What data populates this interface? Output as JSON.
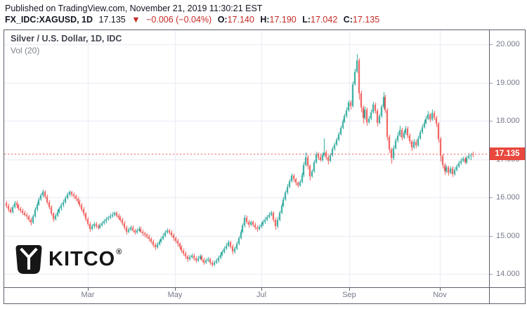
{
  "header": {
    "published_line": "Published on TradingView.com, November 21, 2019 11:30:21 EST",
    "symbol_line": {
      "symbol": "FX_IDC:XAGUSD, 1D",
      "last": "17.135",
      "direction_icon": "▼",
      "change": "−0.006 (−0.04%)",
      "o_label": "O:",
      "o_value": "17.140",
      "h_label": "H:",
      "h_value": "17.190",
      "l_label": "L:",
      "l_value": "17.042",
      "c_label": "C:",
      "c_value": "17.135"
    }
  },
  "chart": {
    "title": "Silver / U.S. Dollar, 1D, IDC",
    "indicator_label": "Vol (20)",
    "watermark": {
      "text": "KITCO",
      "registered_mark": "®"
    },
    "last_price_label": "17.135",
    "colors": {
      "up": "#26a69a",
      "down": "#ef5350",
      "grid": "#e7eaf3",
      "border": "#5d616b",
      "axis_text": "#75798a",
      "last_price": "#e8483e",
      "title": "#434651",
      "header_red": "#c42b26"
    }
  },
  "chart_data": {
    "type": "candlestick",
    "title": "Silver / U.S. Dollar, 1D, IDC",
    "symbol": "FX_IDC:XAGUSD",
    "interval": "1D",
    "last_price": 17.135,
    "ylim": [
      13.65,
      20.37
    ],
    "y_ticks": [
      {
        "value": 20,
        "label": "20.000"
      },
      {
        "value": 19,
        "label": "19.000"
      },
      {
        "value": 18,
        "label": "18.000"
      },
      {
        "value": 17,
        "label": "17.000"
      },
      {
        "value": 16,
        "label": "16.000"
      },
      {
        "value": 15,
        "label": "15.000"
      },
      {
        "value": 14,
        "label": "14.000"
      }
    ],
    "x_tick_months": [
      {
        "label": "Mar",
        "index": 40
      },
      {
        "label": "May",
        "index": 82.8
      },
      {
        "label": "Jul",
        "index": 125.2
      },
      {
        "label": "Sep",
        "index": 168.3
      },
      {
        "label": "Nov",
        "index": 212.8
      }
    ],
    "candles": [
      [
        15.85,
        15.9,
        15.72,
        15.78
      ],
      [
        15.78,
        15.83,
        15.62,
        15.68
      ],
      [
        15.68,
        15.74,
        15.57,
        15.62
      ],
      [
        15.62,
        15.79,
        15.58,
        15.74
      ],
      [
        15.74,
        15.91,
        15.7,
        15.85
      ],
      [
        15.85,
        15.9,
        15.73,
        15.79
      ],
      [
        15.79,
        15.84,
        15.66,
        15.71
      ],
      [
        15.71,
        15.77,
        15.6,
        15.66
      ],
      [
        15.66,
        15.71,
        15.54,
        15.6
      ],
      [
        15.6,
        15.66,
        15.5,
        15.55
      ],
      [
        15.55,
        15.6,
        15.44,
        15.5
      ],
      [
        15.5,
        15.55,
        15.36,
        15.42
      ],
      [
        15.42,
        15.47,
        15.27,
        15.34
      ],
      [
        15.34,
        15.56,
        15.3,
        15.5
      ],
      [
        15.5,
        15.74,
        15.46,
        15.68
      ],
      [
        15.68,
        15.88,
        15.64,
        15.82
      ],
      [
        15.82,
        16.0,
        15.78,
        15.94
      ],
      [
        15.94,
        16.11,
        15.9,
        16.05
      ],
      [
        16.05,
        16.2,
        16.0,
        16.14
      ],
      [
        16.14,
        16.18,
        15.96,
        16.02
      ],
      [
        16.02,
        16.07,
        15.82,
        15.88
      ],
      [
        15.88,
        15.93,
        15.68,
        15.74
      ],
      [
        15.74,
        15.79,
        15.52,
        15.58
      ],
      [
        15.58,
        15.62,
        15.36,
        15.44
      ],
      [
        15.44,
        15.58,
        15.4,
        15.52
      ],
      [
        15.52,
        15.68,
        15.48,
        15.62
      ],
      [
        15.62,
        15.76,
        15.58,
        15.7
      ],
      [
        15.7,
        15.85,
        15.66,
        15.79
      ],
      [
        15.79,
        15.94,
        15.75,
        15.88
      ],
      [
        15.88,
        16.04,
        15.84,
        15.98
      ],
      [
        15.98,
        16.13,
        15.94,
        16.07
      ],
      [
        16.07,
        16.19,
        16.02,
        16.14
      ],
      [
        16.14,
        16.17,
        16.02,
        16.08
      ],
      [
        16.08,
        16.13,
        15.97,
        16.03
      ],
      [
        16.03,
        16.08,
        15.91,
        15.97
      ],
      [
        15.97,
        16.02,
        15.83,
        15.89
      ],
      [
        15.89,
        15.94,
        15.74,
        15.8
      ],
      [
        15.8,
        15.85,
        15.63,
        15.69
      ],
      [
        15.69,
        15.74,
        15.51,
        15.57
      ],
      [
        15.57,
        15.61,
        15.38,
        15.44
      ],
      [
        15.44,
        15.49,
        15.24,
        15.3
      ],
      [
        15.3,
        15.35,
        15.11,
        15.17
      ],
      [
        15.17,
        15.3,
        15.13,
        15.24
      ],
      [
        15.24,
        15.36,
        15.2,
        15.3
      ],
      [
        15.3,
        15.35,
        15.19,
        15.25
      ],
      [
        15.25,
        15.3,
        15.15,
        15.21
      ],
      [
        15.21,
        15.33,
        15.17,
        15.27
      ],
      [
        15.27,
        15.38,
        15.23,
        15.32
      ],
      [
        15.32,
        15.43,
        15.28,
        15.37
      ],
      [
        15.37,
        15.49,
        15.33,
        15.43
      ],
      [
        15.43,
        15.53,
        15.39,
        15.47
      ],
      [
        15.47,
        15.57,
        15.43,
        15.51
      ],
      [
        15.51,
        15.61,
        15.47,
        15.55
      ],
      [
        15.55,
        15.64,
        15.51,
        15.59
      ],
      [
        15.59,
        15.63,
        15.47,
        15.53
      ],
      [
        15.53,
        15.58,
        15.41,
        15.47
      ],
      [
        15.47,
        15.52,
        15.35,
        15.41
      ],
      [
        15.41,
        15.46,
        15.27,
        15.33
      ],
      [
        15.33,
        15.38,
        15.16,
        15.22
      ],
      [
        15.22,
        15.26,
        15.03,
        15.1
      ],
      [
        15.1,
        15.22,
        15.06,
        15.16
      ],
      [
        15.16,
        15.27,
        15.12,
        15.21
      ],
      [
        15.21,
        15.26,
        15.08,
        15.13
      ],
      [
        15.13,
        15.18,
        15.03,
        15.09
      ],
      [
        15.09,
        15.2,
        15.05,
        15.14
      ],
      [
        15.14,
        15.24,
        15.1,
        15.18
      ],
      [
        15.18,
        15.23,
        15.06,
        15.11
      ],
      [
        15.11,
        15.16,
        15.0,
        15.06
      ],
      [
        15.06,
        15.11,
        14.96,
        15.02
      ],
      [
        15.02,
        15.07,
        14.91,
        14.97
      ],
      [
        14.97,
        15.02,
        14.85,
        14.91
      ],
      [
        14.91,
        14.96,
        14.78,
        14.84
      ],
      [
        14.84,
        14.89,
        14.7,
        14.76
      ],
      [
        14.76,
        14.81,
        14.63,
        14.7
      ],
      [
        14.7,
        14.83,
        14.66,
        14.77
      ],
      [
        14.77,
        14.9,
        14.73,
        14.84
      ],
      [
        14.84,
        14.98,
        14.8,
        14.92
      ],
      [
        14.92,
        15.06,
        14.88,
        15.0
      ],
      [
        15.0,
        15.14,
        14.96,
        15.08
      ],
      [
        15.08,
        15.19,
        15.04,
        15.13
      ],
      [
        15.13,
        15.17,
        15.02,
        15.08
      ],
      [
        15.08,
        15.13,
        14.95,
        15.01
      ],
      [
        15.01,
        15.06,
        14.87,
        14.93
      ],
      [
        14.93,
        14.98,
        14.8,
        14.86
      ],
      [
        14.86,
        14.91,
        14.72,
        14.78
      ],
      [
        14.78,
        14.83,
        14.64,
        14.7
      ],
      [
        14.7,
        14.75,
        14.55,
        14.61
      ],
      [
        14.61,
        14.66,
        14.47,
        14.53
      ],
      [
        14.53,
        14.58,
        14.39,
        14.45
      ],
      [
        14.45,
        14.5,
        14.31,
        14.38
      ],
      [
        14.38,
        14.5,
        14.34,
        14.44
      ],
      [
        14.44,
        14.54,
        14.4,
        14.48
      ],
      [
        14.48,
        14.53,
        14.35,
        14.41
      ],
      [
        14.41,
        14.46,
        14.29,
        14.35
      ],
      [
        14.35,
        14.47,
        14.31,
        14.41
      ],
      [
        14.41,
        14.51,
        14.37,
        14.45
      ],
      [
        14.45,
        14.5,
        14.31,
        14.37
      ],
      [
        14.37,
        14.42,
        14.24,
        14.3
      ],
      [
        14.3,
        14.41,
        14.26,
        14.35
      ],
      [
        14.35,
        14.44,
        14.31,
        14.38
      ],
      [
        14.38,
        14.43,
        14.24,
        14.3
      ],
      [
        14.3,
        14.35,
        14.18,
        14.24
      ],
      [
        14.24,
        14.35,
        14.2,
        14.29
      ],
      [
        14.29,
        14.4,
        14.25,
        14.34
      ],
      [
        14.34,
        14.48,
        14.3,
        14.42
      ],
      [
        14.42,
        14.56,
        14.38,
        14.5
      ],
      [
        14.5,
        14.63,
        14.46,
        14.57
      ],
      [
        14.57,
        14.72,
        14.53,
        14.66
      ],
      [
        14.66,
        14.8,
        14.62,
        14.74
      ],
      [
        14.74,
        14.88,
        14.7,
        14.82
      ],
      [
        14.82,
        14.87,
        14.66,
        14.72
      ],
      [
        14.72,
        14.77,
        14.52,
        14.58
      ],
      [
        14.58,
        14.72,
        14.54,
        14.66
      ],
      [
        14.66,
        14.85,
        14.62,
        14.79
      ],
      [
        14.79,
        15.0,
        14.75,
        14.94
      ],
      [
        14.94,
        15.16,
        14.9,
        15.1
      ],
      [
        15.1,
        15.32,
        15.06,
        15.26
      ],
      [
        15.26,
        15.54,
        15.22,
        15.47
      ],
      [
        15.47,
        15.52,
        15.3,
        15.36
      ],
      [
        15.36,
        15.41,
        15.22,
        15.28
      ],
      [
        15.28,
        15.4,
        15.24,
        15.35
      ],
      [
        15.35,
        15.4,
        15.23,
        15.29
      ],
      [
        15.29,
        15.34,
        15.15,
        15.21
      ],
      [
        15.21,
        15.26,
        15.1,
        15.17
      ],
      [
        15.17,
        15.29,
        15.13,
        15.23
      ],
      [
        15.23,
        15.35,
        15.19,
        15.29
      ],
      [
        15.29,
        15.41,
        15.25,
        15.35
      ],
      [
        15.35,
        15.48,
        15.31,
        15.42
      ],
      [
        15.42,
        15.55,
        15.38,
        15.49
      ],
      [
        15.49,
        15.61,
        15.45,
        15.55
      ],
      [
        15.55,
        15.66,
        15.51,
        15.6
      ],
      [
        15.6,
        15.64,
        15.36,
        15.42
      ],
      [
        15.42,
        15.47,
        15.15,
        15.24
      ],
      [
        15.24,
        15.48,
        15.2,
        15.42
      ],
      [
        15.42,
        15.66,
        15.38,
        15.6
      ],
      [
        15.6,
        15.84,
        15.56,
        15.78
      ],
      [
        15.78,
        16.01,
        15.74,
        15.95
      ],
      [
        15.95,
        16.18,
        15.91,
        16.12
      ],
      [
        16.12,
        16.34,
        16.08,
        16.28
      ],
      [
        16.28,
        16.48,
        16.24,
        16.42
      ],
      [
        16.42,
        16.63,
        16.38,
        16.56
      ],
      [
        16.56,
        16.6,
        16.41,
        16.47
      ],
      [
        16.47,
        16.52,
        16.32,
        16.38
      ],
      [
        16.38,
        16.43,
        16.25,
        16.32
      ],
      [
        16.32,
        16.46,
        16.28,
        16.4
      ],
      [
        16.4,
        16.64,
        16.36,
        16.58
      ],
      [
        16.58,
        16.92,
        16.54,
        16.85
      ],
      [
        16.85,
        17.17,
        16.81,
        17.05
      ],
      [
        17.05,
        17.1,
        16.74,
        16.82
      ],
      [
        16.82,
        16.87,
        16.44,
        16.55
      ],
      [
        16.55,
        16.74,
        16.51,
        16.68
      ],
      [
        16.68,
        16.98,
        16.64,
        16.92
      ],
      [
        16.92,
        17.2,
        16.88,
        17.12
      ],
      [
        17.12,
        17.17,
        16.98,
        17.05
      ],
      [
        17.05,
        17.12,
        16.94,
        16.98
      ],
      [
        16.98,
        17.16,
        16.94,
        17.1
      ],
      [
        17.1,
        17.55,
        17.06,
        17.18
      ],
      [
        17.18,
        17.23,
        16.99,
        17.05
      ],
      [
        17.05,
        17.1,
        16.86,
        16.95
      ],
      [
        16.95,
        17.16,
        16.91,
        17.1
      ],
      [
        17.1,
        17.32,
        17.06,
        17.26
      ],
      [
        17.26,
        17.44,
        17.22,
        17.38
      ],
      [
        17.38,
        17.56,
        17.34,
        17.5
      ],
      [
        17.5,
        17.71,
        17.46,
        17.65
      ],
      [
        17.65,
        17.88,
        17.61,
        17.82
      ],
      [
        17.82,
        18.04,
        17.78,
        17.98
      ],
      [
        17.98,
        18.18,
        17.94,
        18.12
      ],
      [
        18.12,
        18.34,
        18.08,
        18.28
      ],
      [
        18.28,
        18.54,
        18.24,
        18.48
      ],
      [
        18.48,
        18.53,
        18.3,
        18.38
      ],
      [
        18.38,
        19.02,
        18.34,
        18.95
      ],
      [
        18.95,
        19.36,
        18.91,
        19.28
      ],
      [
        19.28,
        19.75,
        19.24,
        19.58
      ],
      [
        19.58,
        19.64,
        18.55,
        18.72
      ],
      [
        18.72,
        18.78,
        18.22,
        18.35
      ],
      [
        18.35,
        18.41,
        17.93,
        18.08
      ],
      [
        18.08,
        18.37,
        18.04,
        18.3
      ],
      [
        18.3,
        18.35,
        17.88,
        17.97
      ],
      [
        17.97,
        18.13,
        17.93,
        18.06
      ],
      [
        18.06,
        18.29,
        18.02,
        18.22
      ],
      [
        18.22,
        18.49,
        18.18,
        18.42
      ],
      [
        18.42,
        18.47,
        18.19,
        18.26
      ],
      [
        18.26,
        18.31,
        17.85,
        17.95
      ],
      [
        17.95,
        18.19,
        17.91,
        18.12
      ],
      [
        18.12,
        18.43,
        18.08,
        18.36
      ],
      [
        18.36,
        18.75,
        18.32,
        18.62
      ],
      [
        18.62,
        18.67,
        18.2,
        18.28
      ],
      [
        18.28,
        18.33,
        17.48,
        17.58
      ],
      [
        17.58,
        17.63,
        17.15,
        17.25
      ],
      [
        17.25,
        17.31,
        16.88,
        17.02
      ],
      [
        17.02,
        17.35,
        16.98,
        17.28
      ],
      [
        17.28,
        17.55,
        17.24,
        17.48
      ],
      [
        17.48,
        17.7,
        17.44,
        17.62
      ],
      [
        17.62,
        17.88,
        17.58,
        17.76
      ],
      [
        17.76,
        17.81,
        17.49,
        17.56
      ],
      [
        17.56,
        17.75,
        17.52,
        17.68
      ],
      [
        17.68,
        17.87,
        17.64,
        17.8
      ],
      [
        17.8,
        17.85,
        17.55,
        17.62
      ],
      [
        17.62,
        17.67,
        17.39,
        17.46
      ],
      [
        17.46,
        17.51,
        17.22,
        17.3
      ],
      [
        17.3,
        17.52,
        17.26,
        17.45
      ],
      [
        17.45,
        17.5,
        17.29,
        17.36
      ],
      [
        17.36,
        17.62,
        17.32,
        17.55
      ],
      [
        17.55,
        17.77,
        17.51,
        17.7
      ],
      [
        17.7,
        17.91,
        17.66,
        17.84
      ],
      [
        17.84,
        18.02,
        17.8,
        17.95
      ],
      [
        17.95,
        18.12,
        17.91,
        18.05
      ],
      [
        18.05,
        18.26,
        18.01,
        18.16
      ],
      [
        18.16,
        18.21,
        17.97,
        18.04
      ],
      [
        18.04,
        18.29,
        18.0,
        18.2
      ],
      [
        18.2,
        18.25,
        18.01,
        18.08
      ],
      [
        18.08,
        18.13,
        17.84,
        17.92
      ],
      [
        17.92,
        17.97,
        17.43,
        17.52
      ],
      [
        17.52,
        17.57,
        16.94,
        17.08
      ],
      [
        17.08,
        17.13,
        16.76,
        16.84
      ],
      [
        16.84,
        16.89,
        16.58,
        16.68
      ],
      [
        16.68,
        16.84,
        16.64,
        16.78
      ],
      [
        16.78,
        16.83,
        16.57,
        16.64
      ],
      [
        16.64,
        16.81,
        16.6,
        16.75
      ],
      [
        16.75,
        16.8,
        16.54,
        16.61
      ],
      [
        16.61,
        16.78,
        16.57,
        16.72
      ],
      [
        16.72,
        16.87,
        16.68,
        16.81
      ],
      [
        16.81,
        16.95,
        16.77,
        16.89
      ],
      [
        16.89,
        17.02,
        16.85,
        16.96
      ],
      [
        16.96,
        17.07,
        16.92,
        17.01
      ],
      [
        17.01,
        17.06,
        16.86,
        16.92
      ],
      [
        16.92,
        17.09,
        16.88,
        17.03
      ],
      [
        17.03,
        17.15,
        16.99,
        17.09
      ],
      [
        17.09,
        17.16,
        16.98,
        17.1
      ],
      [
        17.14,
        17.19,
        17.042,
        17.135
      ]
    ]
  }
}
